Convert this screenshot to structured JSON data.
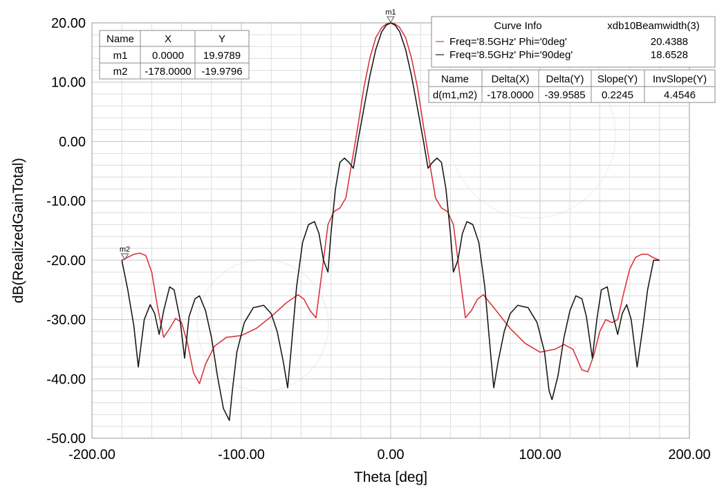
{
  "chart_data": {
    "type": "line",
    "xlabel": "Theta [deg]",
    "ylabel": "dB(RealizedGainTotal)",
    "xlim": [
      -200,
      200
    ],
    "ylim": [
      -50,
      20
    ],
    "x_ticks": [
      "-200.00",
      "-100.00",
      "0.00",
      "100.00",
      "200.00"
    ],
    "y_ticks": [
      "20.00",
      "10.00",
      "0.00",
      "-10.00",
      "-20.00",
      "-30.00",
      "-40.00",
      "-50.00"
    ],
    "grid": true,
    "colors": {
      "phi0": "#d9343b",
      "phi90": "#1a1a1a",
      "grid": "#dcdcdc",
      "major_grid": "#c4c4c4"
    },
    "series": [
      {
        "name": "Freq='8.5GHz' Phi='0deg'",
        "color": "#d9343b",
        "x": [
          -180,
          -176,
          -172,
          -168,
          -164,
          -160,
          -156,
          -152,
          -148,
          -144,
          -140,
          -136,
          -132,
          -128,
          -124,
          -118,
          -110,
          -100,
          -90,
          -80,
          -70,
          -62,
          -58,
          -54,
          -50,
          -46,
          -42,
          -38,
          -34,
          -30,
          -26,
          -22,
          -18,
          -14,
          -10,
          -6,
          -3,
          0,
          3,
          6,
          10,
          14,
          18,
          22,
          26,
          30,
          34,
          38,
          42,
          46,
          50,
          54,
          58,
          62,
          70,
          80,
          90,
          100,
          110,
          116,
          122,
          128,
          132,
          136,
          140,
          144,
          148,
          152,
          156,
          160,
          164,
          168,
          172,
          176,
          180
        ],
        "y": [
          -20.0,
          -19.5,
          -19.0,
          -18.8,
          -19.2,
          -22.0,
          -28.0,
          -33.0,
          -31.5,
          -29.8,
          -30.5,
          -34.0,
          -39.0,
          -40.8,
          -37.5,
          -34.5,
          -33.0,
          -32.7,
          -31.5,
          -29.5,
          -27.2,
          -25.8,
          -26.6,
          -28.5,
          -29.7,
          -22.0,
          -14.0,
          -11.8,
          -11.2,
          -9.5,
          -3.5,
          2.5,
          9.0,
          14.0,
          17.5,
          19.2,
          19.8,
          20.0,
          19.8,
          19.2,
          17.5,
          14.0,
          9.0,
          2.5,
          -3.5,
          -9.5,
          -11.2,
          -11.8,
          -14.0,
          -22.0,
          -29.7,
          -28.5,
          -26.6,
          -25.8,
          -28.3,
          -31.5,
          -34.0,
          -35.5,
          -35.0,
          -34.2,
          -35.0,
          -38.5,
          -38.8,
          -36.0,
          -32.0,
          -30.0,
          -30.5,
          -30.0,
          -25.5,
          -21.5,
          -19.5,
          -19.0,
          -19.0,
          -19.6,
          -20.0
        ]
      },
      {
        "name": "Freq='8.5GHz' Phi='90deg'",
        "color": "#1a1a1a",
        "x": [
          -180,
          -176,
          -172,
          -169,
          -165,
          -161,
          -158,
          -155,
          -152,
          -148,
          -145,
          -141,
          -138,
          -135,
          -131,
          -128,
          -124,
          -120,
          -116,
          -112,
          -108,
          -106,
          -103,
          -98,
          -92,
          -85,
          -80,
          -76,
          -72,
          -69,
          -67,
          -63,
          -59,
          -55,
          -51,
          -48,
          -45,
          -42,
          -40,
          -37,
          -34,
          -31,
          -28,
          -25,
          -22,
          -18,
          -14,
          -10,
          -6,
          -3,
          0,
          3,
          6,
          10,
          14,
          18,
          22,
          25,
          28,
          31,
          34,
          37,
          40,
          42,
          45,
          48,
          51,
          55,
          59,
          63,
          67,
          69,
          72,
          76,
          80,
          85,
          92,
          98,
          103,
          106,
          108,
          112,
          116,
          120,
          124,
          128,
          131,
          135,
          138,
          141,
          145,
          148,
          152,
          155,
          158,
          161,
          165,
          169,
          172,
          176,
          180
        ],
        "y": [
          -20.0,
          -25.0,
          -31.0,
          -38.0,
          -30.0,
          -27.5,
          -29.0,
          -32.5,
          -28.5,
          -24.5,
          -25.0,
          -30.0,
          -36.5,
          -29.5,
          -26.5,
          -26.0,
          -28.5,
          -33.0,
          -39.5,
          -45.0,
          -47.0,
          -42.0,
          -35.5,
          -30.5,
          -28.0,
          -27.6,
          -29.0,
          -32.0,
          -37.0,
          -41.5,
          -36.0,
          -24.5,
          -17.0,
          -14.0,
          -13.5,
          -15.5,
          -20.0,
          -22.0,
          -15.5,
          -8.0,
          -3.5,
          -2.8,
          -3.5,
          -4.5,
          0.0,
          5.5,
          11.0,
          15.5,
          18.5,
          19.6,
          20.0,
          19.6,
          18.5,
          15.5,
          11.0,
          5.5,
          0.0,
          -4.5,
          -3.5,
          -2.8,
          -3.5,
          -8.0,
          -15.5,
          -22.0,
          -20.0,
          -15.5,
          -13.5,
          -14.0,
          -17.0,
          -24.5,
          -36.0,
          -41.5,
          -37.0,
          -32.0,
          -29.0,
          -27.6,
          -28.0,
          -30.5,
          -35.5,
          -42.0,
          -43.5,
          -39.5,
          -33.0,
          -28.5,
          -26.0,
          -26.5,
          -29.5,
          -36.5,
          -30.0,
          -25.0,
          -24.5,
          -28.5,
          -32.5,
          -29.0,
          -27.5,
          -30.0,
          -38.0,
          -31.0,
          -25.0,
          -20.0,
          -20.0
        ]
      }
    ],
    "markers": [
      {
        "label": "m1",
        "x": 0,
        "y": 19.9789
      },
      {
        "label": "m2",
        "x": -178,
        "y": -19.9796
      }
    ],
    "marker_table": {
      "headers": [
        "Name",
        "X",
        "Y"
      ],
      "rows": [
        [
          "m1",
          "0.0000",
          "19.9789"
        ],
        [
          "m2",
          "-178.0000",
          "-19.9796"
        ]
      ]
    },
    "curve_info": {
      "headers": [
        "Curve Info",
        "xdb10Beamwidth(3)"
      ],
      "rows": [
        {
          "name": "Freq='8.5GHz' Phi='0deg'",
          "value": "20.4388",
          "color": "#d9343b"
        },
        {
          "name": "Freq='8.5GHz' Phi='90deg'",
          "value": "18.6528",
          "color": "#1a1a1a"
        }
      ]
    },
    "delta_table": {
      "headers": [
        "Name",
        "Delta(X)",
        "Delta(Y)",
        "Slope(Y)",
        "InvSlope(Y)"
      ],
      "rows": [
        [
          "d(m1,m2)",
          "-178.0000",
          "-39.9585",
          "0.2245",
          "4.4546"
        ]
      ]
    }
  }
}
